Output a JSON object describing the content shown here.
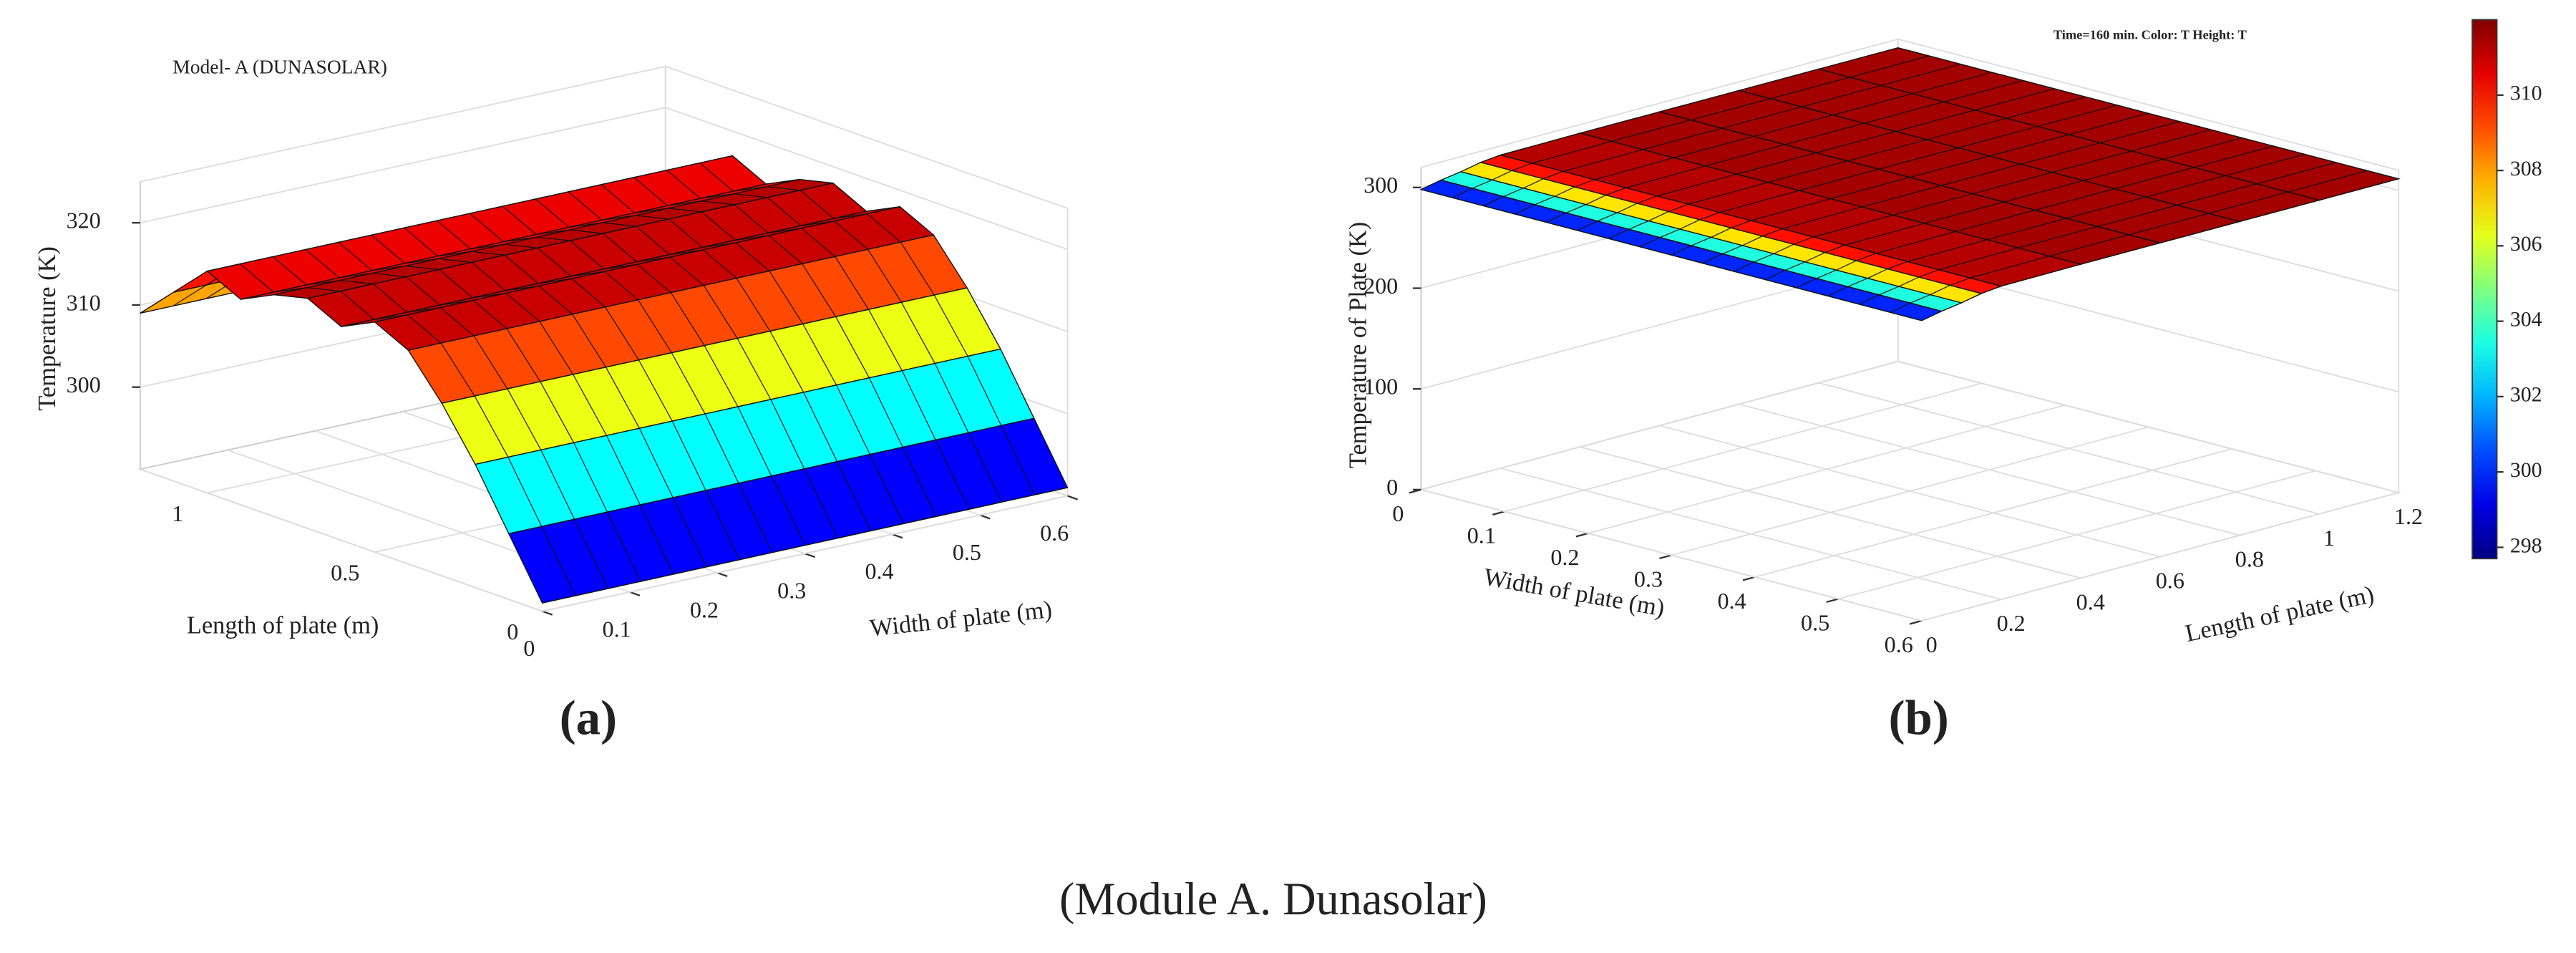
{
  "caption": "(Module A. Dunasolar)",
  "chart_data": [
    {
      "type": "surface",
      "label": "(a)",
      "title": "Model- A (DUNASOLAR)",
      "xlabel": "Width of plate (m)",
      "ylabel": "Length of plate (m)",
      "zlabel": "Temperature (K)",
      "xlim": [
        0,
        0.6
      ],
      "ylim": [
        0,
        1.2
      ],
      "zlim": [
        290,
        325
      ],
      "xticks": [
        0,
        0.1,
        0.2,
        0.3,
        0.4,
        0.5,
        0.6
      ],
      "yticks": [
        0,
        0.5,
        1
      ],
      "zticks": [
        300,
        310,
        320
      ],
      "y": [
        0,
        0.1,
        0.2,
        0.3,
        0.4,
        0.5,
        0.6,
        0.7,
        0.8,
        0.9,
        1,
        1.1,
        1.2
      ],
      "values": [
        291,
        298,
        305,
        311,
        316,
        318,
        316,
        318,
        317,
        315,
        317,
        313,
        309
      ],
      "colormap": "jet",
      "clim": [
        291,
        319
      ],
      "grid": true
    },
    {
      "type": "surface",
      "label": "(b)",
      "title": "Time=160 min.  Color: T  Height: T",
      "xlabel": "Width of plate (m)",
      "ylabel": "Length of plate (m)",
      "zlabel": "Temperature of  Plate (K)",
      "xlim": [
        0,
        0.6
      ],
      "ylim": [
        0,
        1.2
      ],
      "zlim": [
        0,
        320
      ],
      "xticks": [
        0,
        0.1,
        0.2,
        0.3,
        0.4,
        0.5,
        0.6
      ],
      "yticks": [
        0,
        0.2,
        0.4,
        0.6,
        0.8,
        1,
        1.2
      ],
      "zticks": [
        0,
        100,
        200,
        300
      ],
      "y": [
        0,
        0.05,
        0.1,
        0.15,
        0.2,
        0.4,
        0.6,
        0.8,
        1,
        1.2
      ],
      "values": [
        298,
        302,
        305,
        309,
        311,
        311.5,
        311.5,
        311.5,
        311.5,
        311.5
      ],
      "colormap": "jet",
      "clim": [
        297.7,
        312
      ],
      "cticks": [
        298,
        300,
        302,
        304,
        306,
        308,
        310
      ],
      "grid": true
    }
  ]
}
